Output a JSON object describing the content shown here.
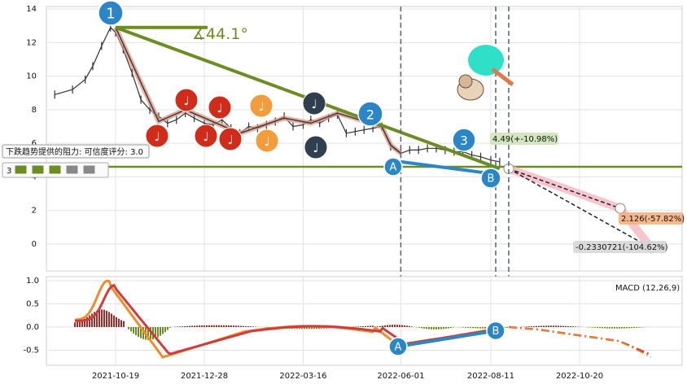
{
  "chart_data": [
    {
      "type": "candlestick",
      "x_tick_labels": [
        "2021-10-19",
        "2021-12-28",
        "2022-03-16",
        "2022-06-01",
        "2022-08-11",
        "2022-10-20"
      ],
      "y_ticks": [
        0,
        2,
        4,
        6,
        8,
        10,
        12,
        14
      ],
      "ylim": [
        -1,
        14
      ],
      "grid": true,
      "price": {
        "date": [
          "2021-09-01",
          "2021-09-15",
          "2021-09-25",
          "2021-10-01",
          "2021-10-08",
          "2021-10-15",
          "2021-10-19",
          "2021-10-25",
          "2021-11-01",
          "2021-11-08",
          "2021-11-15",
          "2021-11-22",
          "2021-11-29",
          "2021-12-06",
          "2021-12-13",
          "2021-12-20",
          "2021-12-28",
          "2022-01-04",
          "2022-01-11",
          "2022-01-18",
          "2022-01-25",
          "2022-02-01",
          "2022-02-08",
          "2022-02-15",
          "2022-02-22",
          "2022-03-01",
          "2022-03-08",
          "2022-03-16",
          "2022-03-22",
          "2022-03-29",
          "2022-04-05",
          "2022-04-12",
          "2022-04-19",
          "2022-04-26",
          "2022-05-03",
          "2022-05-10",
          "2022-05-17",
          "2022-05-24",
          "2022-06-01",
          "2022-06-08",
          "2022-06-15",
          "2022-06-22",
          "2022-06-29",
          "2022-07-06",
          "2022-07-13",
          "2022-07-20",
          "2022-07-27",
          "2022-08-03",
          "2022-08-11",
          "2022-08-18"
        ],
        "close": [
          8.9,
          9.2,
          9.8,
          10.6,
          11.8,
          12.9,
          12.6,
          11.6,
          10.2,
          8.6,
          8.0,
          7.6,
          7.2,
          7.4,
          7.8,
          7.5,
          7.2,
          7.1,
          7.4,
          6.9,
          6.6,
          7.0,
          6.9,
          7.1,
          7.3,
          7.6,
          7.0,
          7.1,
          7.4,
          7.2,
          7.5,
          7.7,
          6.6,
          6.7,
          6.8,
          6.9,
          7.0,
          5.8,
          5.4,
          5.6,
          5.6,
          5.7,
          5.7,
          5.6,
          5.5,
          5.5,
          5.3,
          5.2,
          5.0,
          4.9
        ]
      },
      "trend_lines": [
        {
          "name": "resistance",
          "from": [
            "2021-10-19",
            12.9
          ],
          "to": [
            "2022-08-18",
            4.49
          ],
          "angle_label": "∡44.1°"
        },
        {
          "name": "support",
          "value": 4.6
        }
      ],
      "markers": [
        {
          "label": "1",
          "date": "2021-10-19",
          "value": 13.4
        },
        {
          "label": "2",
          "date": "2022-05-17",
          "value": 7.9
        },
        {
          "label": "3",
          "date": "2022-07-20",
          "value": 6.6
        },
        {
          "label": "A",
          "date": "2022-06-01",
          "value": 4.9
        },
        {
          "label": "B",
          "date": "2022-08-11",
          "value": 4.2
        }
      ],
      "projections": [
        {
          "label": "4.49(+-10.98%)",
          "value": 4.49
        },
        {
          "label": "2.126(-57.82%)",
          "value": 2.126
        },
        {
          "label": "-0.2330721(-104.62%)",
          "value": -0.2330721
        }
      ],
      "resistance_note": "下跌趋势提供的阻力: 可信度评分: 3.0",
      "rating_value": "3"
    },
    {
      "type": "macd",
      "legend": "MACD (12,26,9)",
      "y_ticks": [
        1.0,
        0.5,
        0.0,
        -0.5
      ],
      "ylim": [
        -0.7,
        1.05
      ],
      "markers": [
        {
          "label": "A"
        },
        {
          "label": "B"
        }
      ]
    }
  ],
  "colors": {
    "olive": "#6b8e23",
    "blue": "#2a86c7",
    "salmon": "#e8967a",
    "dark": "#2f3f4f",
    "red": "#d12b1a",
    "orange": "#f39c3c",
    "pink": "#f4b6c2",
    "macd_line": "#d13c3c",
    "signal_line": "#f28c28",
    "hist_up": "#a52a2a",
    "hist_down": "#6b8e23"
  }
}
